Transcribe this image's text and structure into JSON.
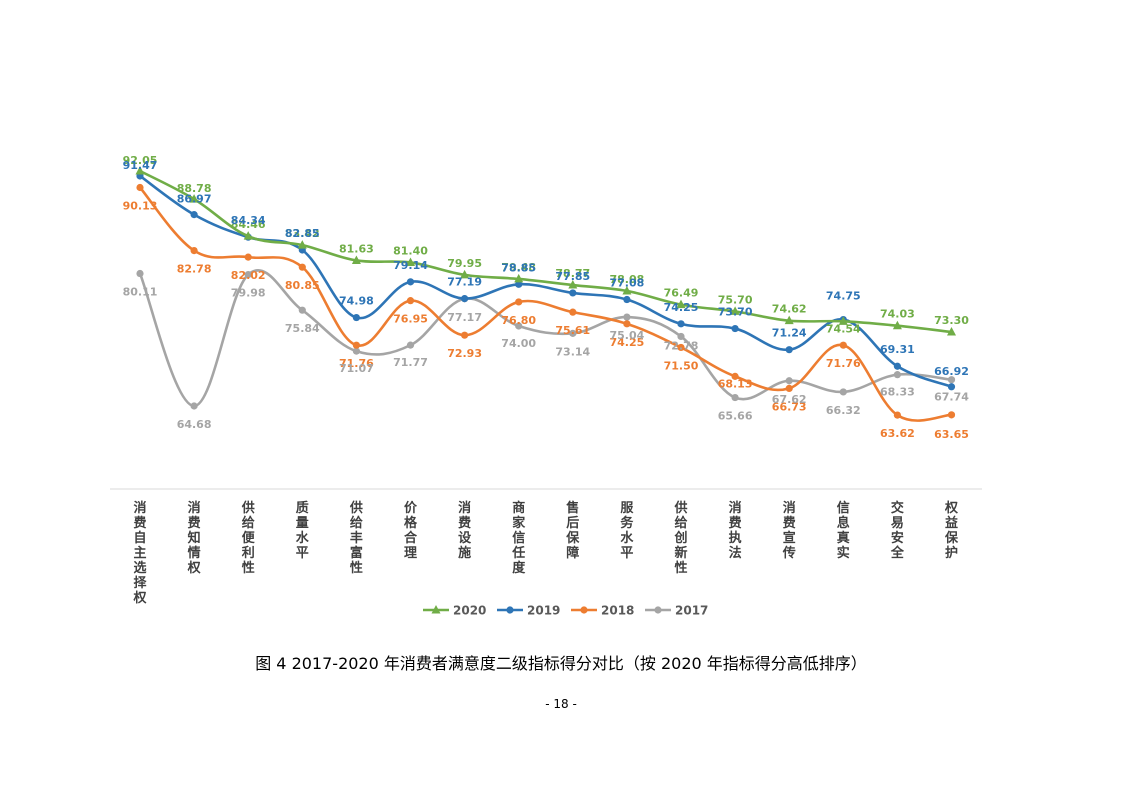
{
  "chart_data": {
    "type": "line",
    "categories": [
      "消费自主选择权",
      "消费知情权",
      "供给便利性",
      "质量水平",
      "供给丰富性",
      "价格合理",
      "消费设施",
      "商家信任度",
      "售后保障",
      "服务水平",
      "供给创新性",
      "消费执法",
      "消费宣传",
      "信息真实",
      "交易安全",
      "权益保护"
    ],
    "series": [
      {
        "name": "2020",
        "color": "#70ad47",
        "marker": "triangle",
        "values": [
          92.05,
          88.78,
          84.46,
          83.42,
          81.63,
          81.4,
          79.95,
          79.48,
          78.77,
          78.08,
          76.49,
          75.7,
          74.62,
          74.54,
          74.03,
          73.3
        ]
      },
      {
        "name": "2019",
        "color": "#2e75b6",
        "marker": "circle",
        "values": [
          91.47,
          86.97,
          84.34,
          82.85,
          74.98,
          79.14,
          77.19,
          78.85,
          77.85,
          77.08,
          74.25,
          73.7,
          71.24,
          74.75,
          69.31,
          66.92
        ]
      },
      {
        "name": "2018",
        "color": "#ed7d31",
        "marker": "circle",
        "values": [
          90.13,
          82.78,
          82.02,
          80.85,
          71.76,
          76.95,
          72.93,
          76.8,
          75.61,
          74.25,
          71.5,
          68.13,
          66.73,
          71.76,
          63.62,
          63.65
        ]
      },
      {
        "name": "2017",
        "color": "#a5a5a5",
        "marker": "circle",
        "values": [
          80.11,
          64.68,
          79.98,
          75.84,
          71.07,
          71.77,
          77.17,
          74.0,
          73.14,
          75.04,
          72.78,
          65.66,
          67.62,
          66.32,
          68.33,
          67.74
        ]
      }
    ],
    "label_format": "2 decimals",
    "legend_position": "bottom",
    "grid": false,
    "smooth_lines": true
  },
  "caption": "图 4 2017-2020 年消费者满意度二级指标得分对比（按 2020 年指标得分高低排序）",
  "page_number": "- 18 -"
}
